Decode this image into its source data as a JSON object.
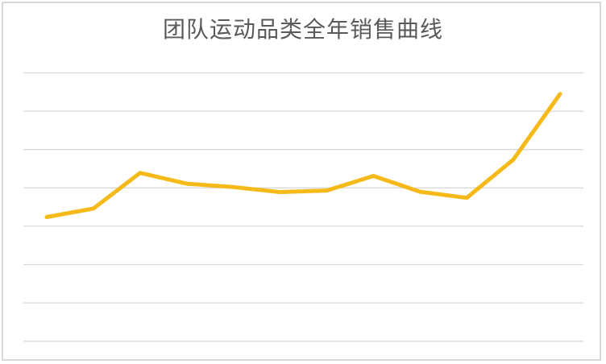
{
  "colors": {
    "line": "#F5B919",
    "grid": "#D9D9D9",
    "title_text": "#595959",
    "card_border": "#D9D9D9",
    "background": "#FFFFFF"
  },
  "chart_data": {
    "type": "line",
    "title": "团队运动品类全年销售曲线",
    "x": [
      1,
      2,
      3,
      4,
      5,
      6,
      7,
      8,
      9,
      10,
      11,
      12
    ],
    "values": [
      32.4,
      34.6,
      43.9,
      41.1,
      40.2,
      38.9,
      39.3,
      43.1,
      39.0,
      37.4,
      47.4,
      64.5
    ],
    "xlabel": "",
    "ylabel": "",
    "ylim": [
      0,
      70
    ],
    "gridlines": [
      0,
      10,
      20,
      30,
      40,
      50,
      60,
      70
    ],
    "grid": "horizontal-only",
    "legend": "none",
    "axis_tick_labels_visible": false,
    "note": "no numeric axis labels visible; values estimated from gridline spacing with bottom gridline = 0, step = 10"
  }
}
